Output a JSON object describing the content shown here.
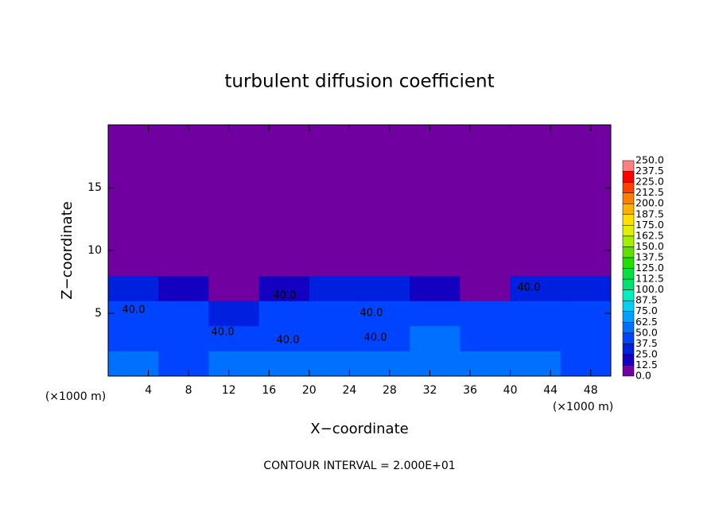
{
  "chart_data": {
    "type": "heatmap",
    "title": "turbulent diffusion coefficient",
    "xlabel": "X−coordinate",
    "ylabel": "Z−coordinate",
    "x_unit": "(×1000 m)",
    "y_unit": "(×1000 m)",
    "footer": "CONTOUR INTERVAL = 2.000E+01",
    "xlim": [
      0,
      50
    ],
    "ylim": [
      0,
      20
    ],
    "xticks": [
      4,
      8,
      12,
      16,
      20,
      24,
      28,
      32,
      36,
      40,
      44,
      48
    ],
    "yticks": [
      5,
      10,
      15
    ],
    "x_edges": [
      0,
      5,
      10,
      15,
      20,
      25,
      30,
      35,
      40,
      45,
      50
    ],
    "z_edges": [
      0,
      2,
      4,
      6,
      8,
      20
    ],
    "values": [
      [
        50,
        45,
        55,
        50,
        60,
        50,
        55,
        50,
        60,
        45
      ],
      [
        40,
        40,
        45,
        40,
        45,
        40,
        50,
        40,
        45,
        40
      ],
      [
        40,
        40,
        35,
        40,
        40,
        40,
        45,
        40,
        40,
        40
      ],
      [
        30,
        20,
        5,
        15,
        30,
        25,
        20,
        10,
        25,
        25
      ],
      [
        0,
        0,
        0,
        0,
        0,
        0,
        0,
        0,
        0,
        0
      ]
    ],
    "contour_labels": [
      "40.0",
      "40.0",
      "40.0",
      "40.0",
      "40.0",
      "40.0",
      "40.0"
    ],
    "levels": [
      {
        "value": 0,
        "label": "0.0"
      },
      {
        "value": 12.5,
        "label": "12.5"
      },
      {
        "value": 25,
        "label": "25.0"
      },
      {
        "value": 37.5,
        "label": "37.5"
      },
      {
        "value": 50,
        "label": "50.0"
      },
      {
        "value": 62.5,
        "label": "62.5"
      },
      {
        "value": 75,
        "label": "75.0"
      },
      {
        "value": 87.5,
        "label": "87.5"
      },
      {
        "value": 100,
        "label": "100.0"
      },
      {
        "value": 112.5,
        "label": "112.5"
      },
      {
        "value": 125,
        "label": "125.0"
      },
      {
        "value": 137.5,
        "label": "137.5"
      },
      {
        "value": 150,
        "label": "150.0"
      },
      {
        "value": 162.5,
        "label": "162.5"
      },
      {
        "value": 175,
        "label": "175.0"
      },
      {
        "value": 187.5,
        "label": "187.5"
      },
      {
        "value": 200,
        "label": "200.0"
      },
      {
        "value": 212.5,
        "label": "212.5"
      },
      {
        "value": 225,
        "label": "225.0"
      },
      {
        "value": 237.5,
        "label": "237.5"
      },
      {
        "value": 250,
        "label": "250.0"
      }
    ],
    "colors": [
      "#7000a0",
      "#1400c0",
      "#0020e0",
      "#0044ff",
      "#0070ff",
      "#00a0ff",
      "#00d0f0",
      "#00f0c0",
      "#00e070",
      "#00e040",
      "#20e000",
      "#60e000",
      "#a0f000",
      "#e0f000",
      "#ffe000",
      "#ffb000",
      "#ff8000",
      "#ff4000",
      "#ff0000",
      "#ff8080"
    ]
  }
}
